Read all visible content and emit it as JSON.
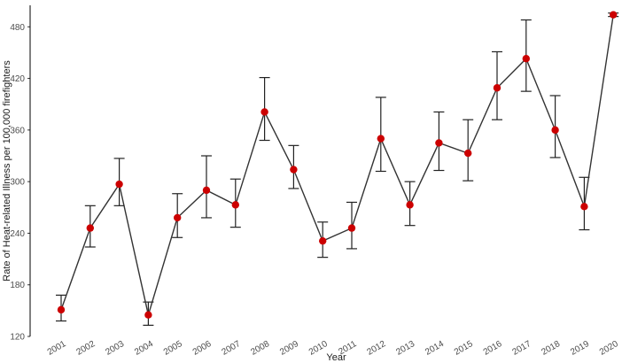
{
  "chart_data": {
    "type": "line",
    "title": "",
    "xlabel": "Year",
    "ylabel": "Rate of Heat-related Illness per 100,000 firefighters",
    "ylim": [
      120,
      505
    ],
    "yticks": [
      120,
      180,
      240,
      300,
      360,
      420,
      480
    ],
    "grid": false,
    "error_bars": true,
    "series": [
      {
        "line_color": "#333333",
        "marker_color": "#cc0000",
        "points": [
          {
            "x": "2001",
            "y": 151,
            "lower": 138,
            "upper": 168
          },
          {
            "x": "2002",
            "y": 246,
            "lower": 224,
            "upper": 272
          },
          {
            "x": "2003",
            "y": 297,
            "lower": 272,
            "upper": 327
          },
          {
            "x": "2004",
            "y": 145,
            "lower": 133,
            "upper": 160
          },
          {
            "x": "2005",
            "y": 258,
            "lower": 235,
            "upper": 286
          },
          {
            "x": "2006",
            "y": 290,
            "lower": 258,
            "upper": 330
          },
          {
            "x": "2007",
            "y": 273,
            "lower": 247,
            "upper": 303
          },
          {
            "x": "2008",
            "y": 381,
            "lower": 348,
            "upper": 421
          },
          {
            "x": "2009",
            "y": 314,
            "lower": 292,
            "upper": 342
          },
          {
            "x": "2010",
            "y": 231,
            "lower": 212,
            "upper": 253
          },
          {
            "x": "2011",
            "y": 246,
            "lower": 222,
            "upper": 276
          },
          {
            "x": "2012",
            "y": 350,
            "lower": 312,
            "upper": 398
          },
          {
            "x": "2013",
            "y": 273,
            "lower": 249,
            "upper": 300
          },
          {
            "x": "2014",
            "y": 345,
            "lower": 313,
            "upper": 381
          },
          {
            "x": "2015",
            "y": 333,
            "lower": 301,
            "upper": 372
          },
          {
            "x": "2016",
            "y": 409,
            "lower": 372,
            "upper": 451
          },
          {
            "x": "2017",
            "y": 443,
            "lower": 405,
            "upper": 488
          },
          {
            "x": "2018",
            "y": 360,
            "lower": 328,
            "upper": 400
          },
          {
            "x": "2019",
            "y": 271,
            "lower": 244,
            "upper": 305
          },
          {
            "x": "2020",
            "y": 494,
            "lower": 492,
            "upper": 496
          }
        ]
      }
    ]
  }
}
